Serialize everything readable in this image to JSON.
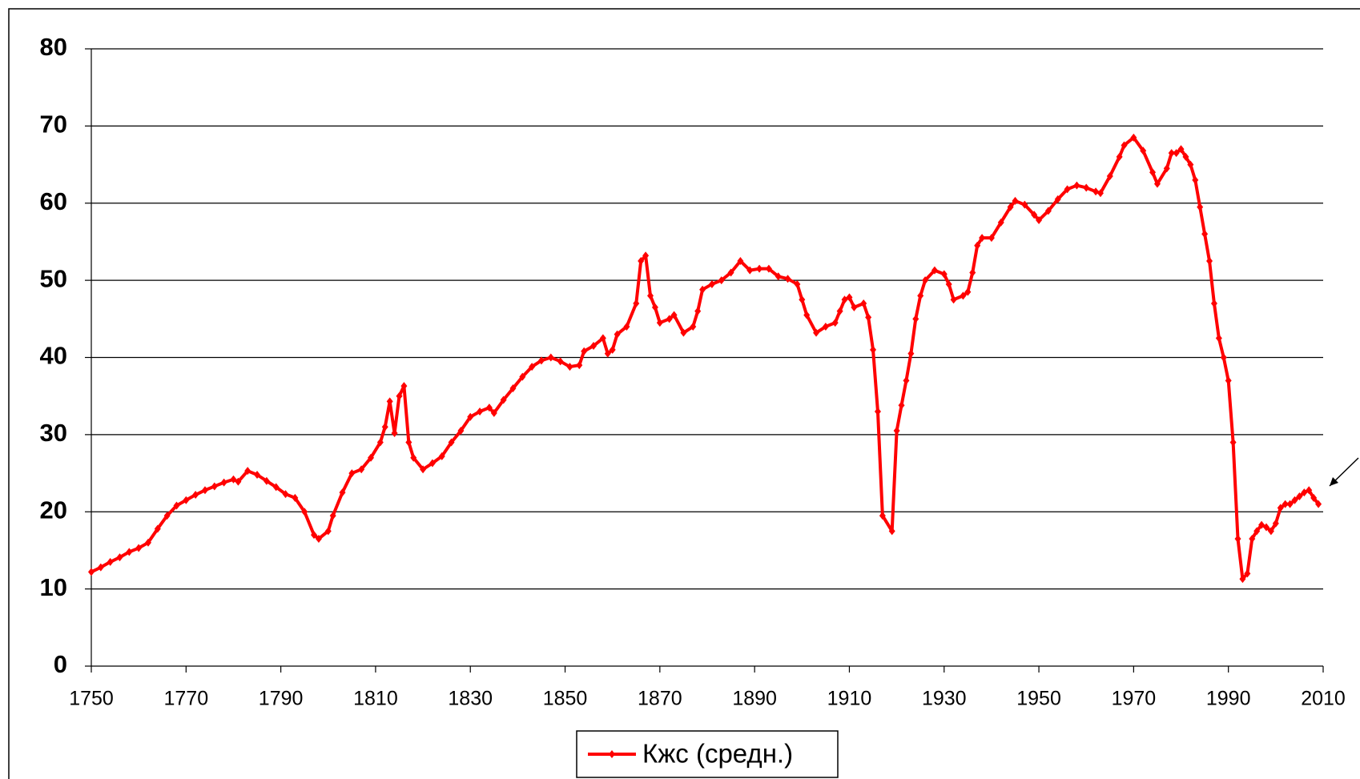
{
  "chart_data": {
    "type": "line",
    "x": [
      1750,
      1752,
      1754,
      1756,
      1758,
      1760,
      1762,
      1764,
      1766,
      1768,
      1770,
      1772,
      1774,
      1776,
      1778,
      1780,
      1781,
      1783,
      1785,
      1787,
      1789,
      1791,
      1793,
      1795,
      1797,
      1798,
      1800,
      1801,
      1803,
      1805,
      1807,
      1809,
      1811,
      1812,
      1813,
      1814,
      1815,
      1816,
      1817,
      1818,
      1820,
      1822,
      1824,
      1826,
      1828,
      1830,
      1832,
      1834,
      1835,
      1837,
      1839,
      1841,
      1843,
      1845,
      1847,
      1849,
      1851,
      1853,
      1854,
      1856,
      1858,
      1859,
      1860,
      1861,
      1863,
      1865,
      1866,
      1867,
      1868,
      1869,
      1870,
      1872,
      1873,
      1875,
      1877,
      1878,
      1879,
      1881,
      1883,
      1885,
      1887,
      1889,
      1891,
      1893,
      1895,
      1897,
      1899,
      1900,
      1901,
      1903,
      1905,
      1907,
      1908,
      1909,
      1910,
      1911,
      1913,
      1914,
      1915,
      1916,
      1917,
      1919,
      1920,
      1921,
      1922,
      1923,
      1924,
      1925,
      1926,
      1928,
      1930,
      1931,
      1932,
      1934,
      1935,
      1936,
      1937,
      1938,
      1940,
      1942,
      1944,
      1945,
      1947,
      1949,
      1950,
      1952,
      1954,
      1956,
      1958,
      1960,
      1962,
      1963,
      1965,
      1967,
      1968,
      1970,
      1972,
      1974,
      1975,
      1977,
      1978,
      1979,
      1980,
      1981,
      1982,
      1983,
      1984,
      1985,
      1986,
      1987,
      1988,
      1989,
      1990,
      1991,
      1992,
      1993,
      1994,
      1995,
      1996,
      1997,
      1998,
      1999,
      2000,
      2001,
      2002,
      2003,
      2004,
      2005,
      2006,
      2007,
      2008,
      2009
    ],
    "series": [
      {
        "name": "Кжс (средн.)",
        "color": "#ff0000",
        "values": [
          12.2,
          12.8,
          13.5,
          14.1,
          14.8,
          15.3,
          16.0,
          17.8,
          19.5,
          20.8,
          21.5,
          22.2,
          22.8,
          23.3,
          23.8,
          24.2,
          23.9,
          25.3,
          24.8,
          24.0,
          23.2,
          22.3,
          21.8,
          20.0,
          17.0,
          16.5,
          17.5,
          19.5,
          22.5,
          25.0,
          25.5,
          27.0,
          29.0,
          31.0,
          34.3,
          30.2,
          35.0,
          36.3,
          29.0,
          27.0,
          25.5,
          26.3,
          27.2,
          29.0,
          30.5,
          32.3,
          33.0,
          33.5,
          32.8,
          34.5,
          36.0,
          37.5,
          38.8,
          39.6,
          40.0,
          39.5,
          38.8,
          39.0,
          40.8,
          41.5,
          42.5,
          40.5,
          41.0,
          43.0,
          44.0,
          47.0,
          52.5,
          53.2,
          48.0,
          46.5,
          44.5,
          45.0,
          45.5,
          43.2,
          44.0,
          46.0,
          48.8,
          49.5,
          50.0,
          51.0,
          52.5,
          51.3,
          51.5,
          51.5,
          50.5,
          50.2,
          49.5,
          47.5,
          45.5,
          43.2,
          44.0,
          44.5,
          46.0,
          47.5,
          47.8,
          46.5,
          47.0,
          45.2,
          41.0,
          33.0,
          19.5,
          17.5,
          30.5,
          33.8,
          37.0,
          40.5,
          45.0,
          48.0,
          50.0,
          51.3,
          50.8,
          49.5,
          47.5,
          48.0,
          48.5,
          51.0,
          54.5,
          55.5,
          55.5,
          57.5,
          59.5,
          60.3,
          59.8,
          58.5,
          57.8,
          59.0,
          60.5,
          61.8,
          62.3,
          62.0,
          61.5,
          61.3,
          63.5,
          66.0,
          67.5,
          68.5,
          66.8,
          64.0,
          62.5,
          64.5,
          66.5,
          66.5,
          67.0,
          66.0,
          65.0,
          63.0,
          59.5,
          56.0,
          52.5,
          47.0,
          42.5,
          40.0,
          37.0,
          29.0,
          16.5,
          11.3,
          12.0,
          16.5,
          17.5,
          18.3,
          18.0,
          17.5,
          18.5,
          20.5,
          21.0,
          21.0,
          21.5,
          22.0,
          22.5,
          22.8,
          21.8,
          21.0
        ]
      }
    ],
    "xlim": [
      1750,
      2010
    ],
    "xticks": [
      1750,
      1770,
      1790,
      1810,
      1830,
      1850,
      1870,
      1890,
      1910,
      1930,
      1950,
      1970,
      1990,
      2010
    ],
    "ylim": [
      0,
      80
    ],
    "yticks": [
      0,
      10,
      20,
      30,
      40,
      50,
      60,
      70,
      80
    ],
    "grid": true,
    "legend": "bottom"
  }
}
